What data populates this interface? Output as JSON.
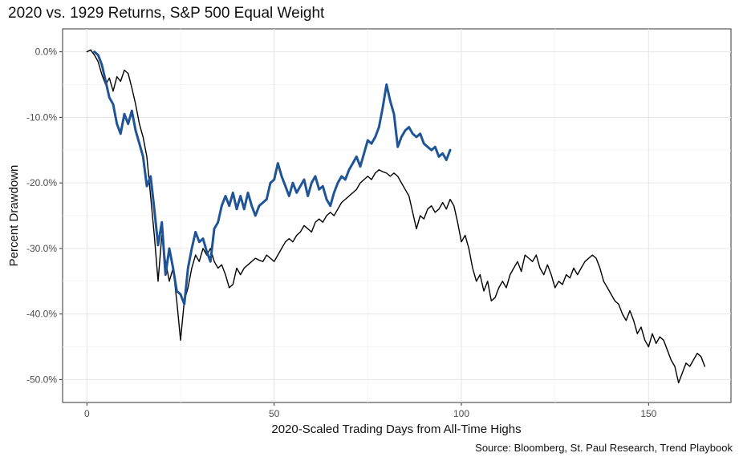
{
  "chart_data": {
    "type": "line",
    "title": "2020 vs. 1929 Returns, S&P 500 Equal Weight",
    "source": "Source: Bloomberg, St. Paul Research, Trend Playbook",
    "xlabel": "2020-Scaled Trading Days from All-Time Highs",
    "ylabel": "Percent Drawdown",
    "xlim": [
      -6.5,
      172
    ],
    "ylim": [
      -53.5,
      3.5
    ],
    "xticks": [
      0,
      50,
      100,
      150
    ],
    "xtick_labels": [
      "0",
      "50",
      "100",
      "150"
    ],
    "yticks": [
      0,
      -10,
      -20,
      -30,
      -40,
      -50
    ],
    "ytick_labels": [
      "0.0%",
      "-10.0%",
      "-20.0%",
      "-30.0%",
      "-40.0%",
      "-50.0%"
    ],
    "grid": true,
    "legend": "none",
    "series": [
      {
        "color": "#000000",
        "line_width": 1.4,
        "points": [
          [
            0,
            0
          ],
          [
            1,
            0.3
          ],
          [
            2,
            -0.5
          ],
          [
            3,
            -1.5
          ],
          [
            4,
            -3.5
          ],
          [
            5,
            -5
          ],
          [
            6,
            -4
          ],
          [
            7,
            -6
          ],
          [
            8,
            -3.8
          ],
          [
            9,
            -4.5
          ],
          [
            10,
            -2.8
          ],
          [
            11,
            -3.3
          ],
          [
            12,
            -5.5
          ],
          [
            13,
            -8
          ],
          [
            14,
            -11
          ],
          [
            15,
            -13
          ],
          [
            16,
            -16
          ],
          [
            17,
            -22
          ],
          [
            18,
            -28
          ],
          [
            19,
            -35
          ],
          [
            20,
            -28
          ],
          [
            21,
            -32
          ],
          [
            22,
            -35
          ],
          [
            23,
            -33
          ],
          [
            24,
            -38
          ],
          [
            25,
            -44
          ],
          [
            26,
            -38
          ],
          [
            27,
            -36
          ],
          [
            28,
            -33
          ],
          [
            29,
            -31
          ],
          [
            30,
            -32
          ],
          [
            31,
            -30
          ],
          [
            32,
            -31
          ],
          [
            33,
            -30
          ],
          [
            34,
            -32
          ],
          [
            35,
            -33
          ],
          [
            36,
            -32.5
          ],
          [
            37,
            -34
          ],
          [
            38,
            -36
          ],
          [
            39,
            -35.5
          ],
          [
            40,
            -33
          ],
          [
            41,
            -34
          ],
          [
            42,
            -33
          ],
          [
            43,
            -32.5
          ],
          [
            44,
            -32
          ],
          [
            45,
            -31.5
          ],
          [
            46,
            -31.8
          ],
          [
            47,
            -32
          ],
          [
            48,
            -31
          ],
          [
            49,
            -31.5
          ],
          [
            50,
            -32
          ],
          [
            51,
            -31
          ],
          [
            52,
            -30
          ],
          [
            53,
            -29
          ],
          [
            54,
            -28.5
          ],
          [
            55,
            -29
          ],
          [
            56,
            -28
          ],
          [
            57,
            -27.5
          ],
          [
            58,
            -26.5
          ],
          [
            59,
            -27
          ],
          [
            60,
            -27.5
          ],
          [
            61,
            -26
          ],
          [
            62,
            -25.5
          ],
          [
            63,
            -26
          ],
          [
            64,
            -25
          ],
          [
            65,
            -24.5
          ],
          [
            66,
            -25
          ],
          [
            67,
            -24
          ],
          [
            68,
            -23
          ],
          [
            69,
            -22.5
          ],
          [
            70,
            -22
          ],
          [
            71,
            -21.5
          ],
          [
            72,
            -21
          ],
          [
            73,
            -20
          ],
          [
            74,
            -19.5
          ],
          [
            75,
            -19
          ],
          [
            76,
            -19.5
          ],
          [
            77,
            -18.5
          ],
          [
            78,
            -18
          ],
          [
            79,
            -18.3
          ],
          [
            80,
            -18.5
          ],
          [
            81,
            -19
          ],
          [
            82,
            -18.5
          ],
          [
            83,
            -19
          ],
          [
            84,
            -20
          ],
          [
            85,
            -21
          ],
          [
            86,
            -22
          ],
          [
            87,
            -24.5
          ],
          [
            88,
            -27
          ],
          [
            89,
            -25
          ],
          [
            90,
            -25.5
          ],
          [
            91,
            -24
          ],
          [
            92,
            -23.5
          ],
          [
            93,
            -24.5
          ],
          [
            94,
            -24
          ],
          [
            95,
            -23
          ],
          [
            96,
            -24
          ],
          [
            97,
            -22.5
          ],
          [
            98,
            -23.5
          ],
          [
            99,
            -26
          ],
          [
            100,
            -29
          ],
          [
            101,
            -28
          ],
          [
            102,
            -30
          ],
          [
            103,
            -33
          ],
          [
            104,
            -35
          ],
          [
            105,
            -34
          ],
          [
            106,
            -36.5
          ],
          [
            107,
            -35
          ],
          [
            108,
            -38
          ],
          [
            109,
            -37.5
          ],
          [
            110,
            -36
          ],
          [
            111,
            -35
          ],
          [
            112,
            -36
          ],
          [
            113,
            -34
          ],
          [
            114,
            -33
          ],
          [
            115,
            -32
          ],
          [
            116,
            -33.5
          ],
          [
            117,
            -31
          ],
          [
            118,
            -31.5
          ],
          [
            119,
            -32
          ],
          [
            120,
            -31
          ],
          [
            121,
            -33
          ],
          [
            122,
            -34
          ],
          [
            123,
            -32.5
          ],
          [
            124,
            -34
          ],
          [
            125,
            -36
          ],
          [
            126,
            -35
          ],
          [
            127,
            -35.5
          ],
          [
            128,
            -34
          ],
          [
            129,
            -34.5
          ],
          [
            130,
            -33
          ],
          [
            131,
            -34
          ],
          [
            132,
            -33
          ],
          [
            133,
            -32
          ],
          [
            134,
            -31.5
          ],
          [
            135,
            -31
          ],
          [
            136,
            -31.5
          ],
          [
            137,
            -33
          ],
          [
            138,
            -35
          ],
          [
            139,
            -36
          ],
          [
            140,
            -37
          ],
          [
            141,
            -38
          ],
          [
            142,
            -38.5
          ],
          [
            143,
            -40
          ],
          [
            144,
            -41
          ],
          [
            145,
            -39.5
          ],
          [
            146,
            -41
          ],
          [
            147,
            -43
          ],
          [
            148,
            -42
          ],
          [
            149,
            -44
          ],
          [
            150,
            -45
          ],
          [
            151,
            -43
          ],
          [
            152,
            -44.5
          ],
          [
            153,
            -43.5
          ],
          [
            154,
            -44
          ],
          [
            155,
            -45.5
          ],
          [
            156,
            -47
          ],
          [
            157,
            -48
          ],
          [
            158,
            -50.5
          ],
          [
            159,
            -49
          ],
          [
            160,
            -47.5
          ],
          [
            161,
            -48
          ],
          [
            162,
            -47
          ],
          [
            163,
            -46
          ],
          [
            164,
            -46.5
          ],
          [
            165,
            -48
          ]
        ]
      },
      {
        "color": "#1f5597",
        "line_width": 3,
        "points": [
          [
            2,
            0
          ],
          [
            3,
            -0.5
          ],
          [
            4,
            -2
          ],
          [
            5,
            -4.5
          ],
          [
            6,
            -7
          ],
          [
            7,
            -8
          ],
          [
            8,
            -11
          ],
          [
            9,
            -12.5
          ],
          [
            10,
            -9.5
          ],
          [
            11,
            -11
          ],
          [
            12,
            -9
          ],
          [
            13,
            -12
          ],
          [
            14,
            -14
          ],
          [
            15,
            -16
          ],
          [
            16,
            -20.5
          ],
          [
            17,
            -19
          ],
          [
            18,
            -24
          ],
          [
            19,
            -29.5
          ],
          [
            20,
            -26
          ],
          [
            21,
            -34
          ],
          [
            22,
            -30
          ],
          [
            23,
            -33
          ],
          [
            24,
            -36.5
          ],
          [
            25,
            -37
          ],
          [
            26,
            -38.5
          ],
          [
            27,
            -33
          ],
          [
            28,
            -30
          ],
          [
            29,
            -27.5
          ],
          [
            30,
            -29
          ],
          [
            31,
            -28.5
          ],
          [
            32,
            -30.5
          ],
          [
            33,
            -32
          ],
          [
            34,
            -27
          ],
          [
            35,
            -26
          ],
          [
            36,
            -23.5
          ],
          [
            37,
            -22
          ],
          [
            38,
            -23.5
          ],
          [
            39,
            -21.5
          ],
          [
            40,
            -24
          ],
          [
            41,
            -22
          ],
          [
            42,
            -24
          ],
          [
            43,
            -21.5
          ],
          [
            44,
            -23.5
          ],
          [
            45,
            -25
          ],
          [
            46,
            -23.5
          ],
          [
            47,
            -23
          ],
          [
            48,
            -22.5
          ],
          [
            49,
            -20
          ],
          [
            50,
            -19.5
          ],
          [
            51,
            -17
          ],
          [
            52,
            -19
          ],
          [
            53,
            -20.5
          ],
          [
            54,
            -22
          ],
          [
            55,
            -20
          ],
          [
            56,
            -21.5
          ],
          [
            57,
            -20.5
          ],
          [
            58,
            -19.5
          ],
          [
            59,
            -22
          ],
          [
            60,
            -20
          ],
          [
            61,
            -19
          ],
          [
            62,
            -21
          ],
          [
            63,
            -20.5
          ],
          [
            64,
            -22.5
          ],
          [
            65,
            -23.5
          ],
          [
            66,
            -21.5
          ],
          [
            67,
            -20
          ],
          [
            68,
            -19
          ],
          [
            69,
            -19.5
          ],
          [
            70,
            -18
          ],
          [
            71,
            -17
          ],
          [
            72,
            -16
          ],
          [
            73,
            -17.5
          ],
          [
            74,
            -15.5
          ],
          [
            75,
            -13.5
          ],
          [
            76,
            -14
          ],
          [
            77,
            -13
          ],
          [
            78,
            -11.5
          ],
          [
            79,
            -8.5
          ],
          [
            80,
            -5
          ],
          [
            81,
            -7.5
          ],
          [
            82,
            -9.5
          ],
          [
            83,
            -14.5
          ],
          [
            84,
            -13
          ],
          [
            85,
            -12
          ],
          [
            86,
            -11.5
          ],
          [
            87,
            -12.5
          ],
          [
            88,
            -13
          ],
          [
            89,
            -12.5
          ],
          [
            90,
            -14
          ],
          [
            91,
            -14.5
          ],
          [
            92,
            -15
          ],
          [
            93,
            -14.5
          ],
          [
            94,
            -16
          ],
          [
            95,
            -15.5
          ],
          [
            96,
            -16.5
          ],
          [
            97,
            -15
          ]
        ]
      }
    ]
  }
}
